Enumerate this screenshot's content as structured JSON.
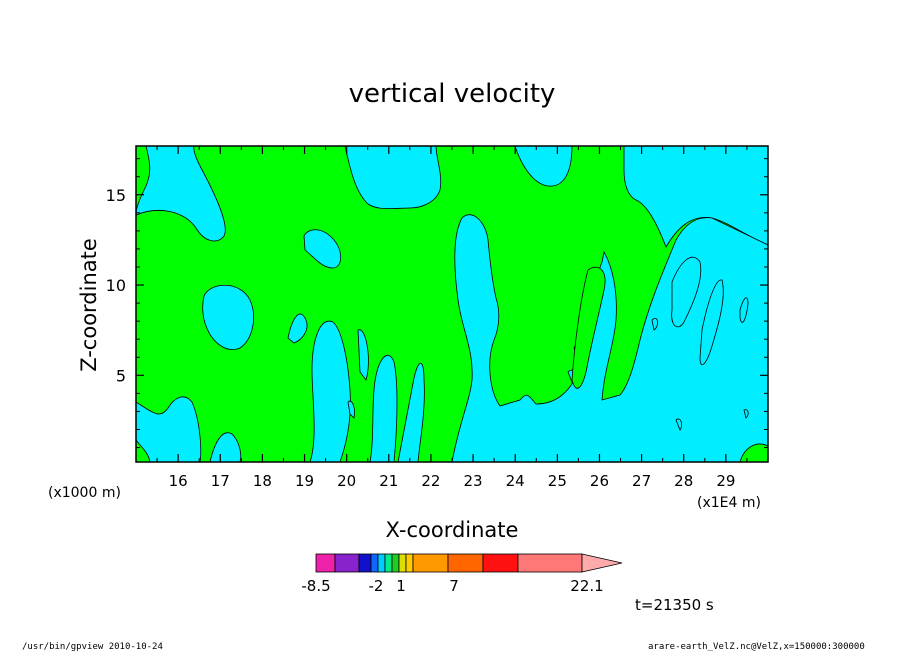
{
  "chart_data": {
    "type": "heatmap",
    "title": "vertical velocity",
    "xlabel": "X-coordinate",
    "ylabel": "Z-coordinate",
    "x_unit_left": "(x1000 m)",
    "x_unit_right": "(x1E4 m)",
    "x_ticks": [
      16,
      17,
      18,
      19,
      20,
      21,
      22,
      23,
      24,
      25,
      26,
      27,
      28,
      29
    ],
    "y_ticks": [
      5,
      10,
      15
    ],
    "xlim": [
      15.0,
      30.0
    ],
    "ylim": [
      0.2,
      17.7
    ],
    "levels_fill": [
      {
        "name": "neutral",
        "color": "#00ff00"
      },
      {
        "name": "negative",
        "color": "#00eeff"
      }
    ],
    "colorbar": {
      "colors": [
        "#ee22aa",
        "#8822cc",
        "#1111cc",
        "#1166ff",
        "#00ccff",
        "#00ee88",
        "#22cc22",
        "#dddd00",
        "#ffcc00",
        "#ff9900",
        "#ff6600",
        "#ff1111",
        "#ff7777",
        "#ffaaaa"
      ],
      "labels": [
        "-8.5",
        "-2",
        "1",
        "7",
        "22.1"
      ]
    },
    "time_label": "t=21350 s"
  },
  "footer": {
    "left": "/usr/bin/gpview   2010-10-24",
    "right": "arare-earth_VelZ.nc@VelZ,x=150000:300000"
  }
}
